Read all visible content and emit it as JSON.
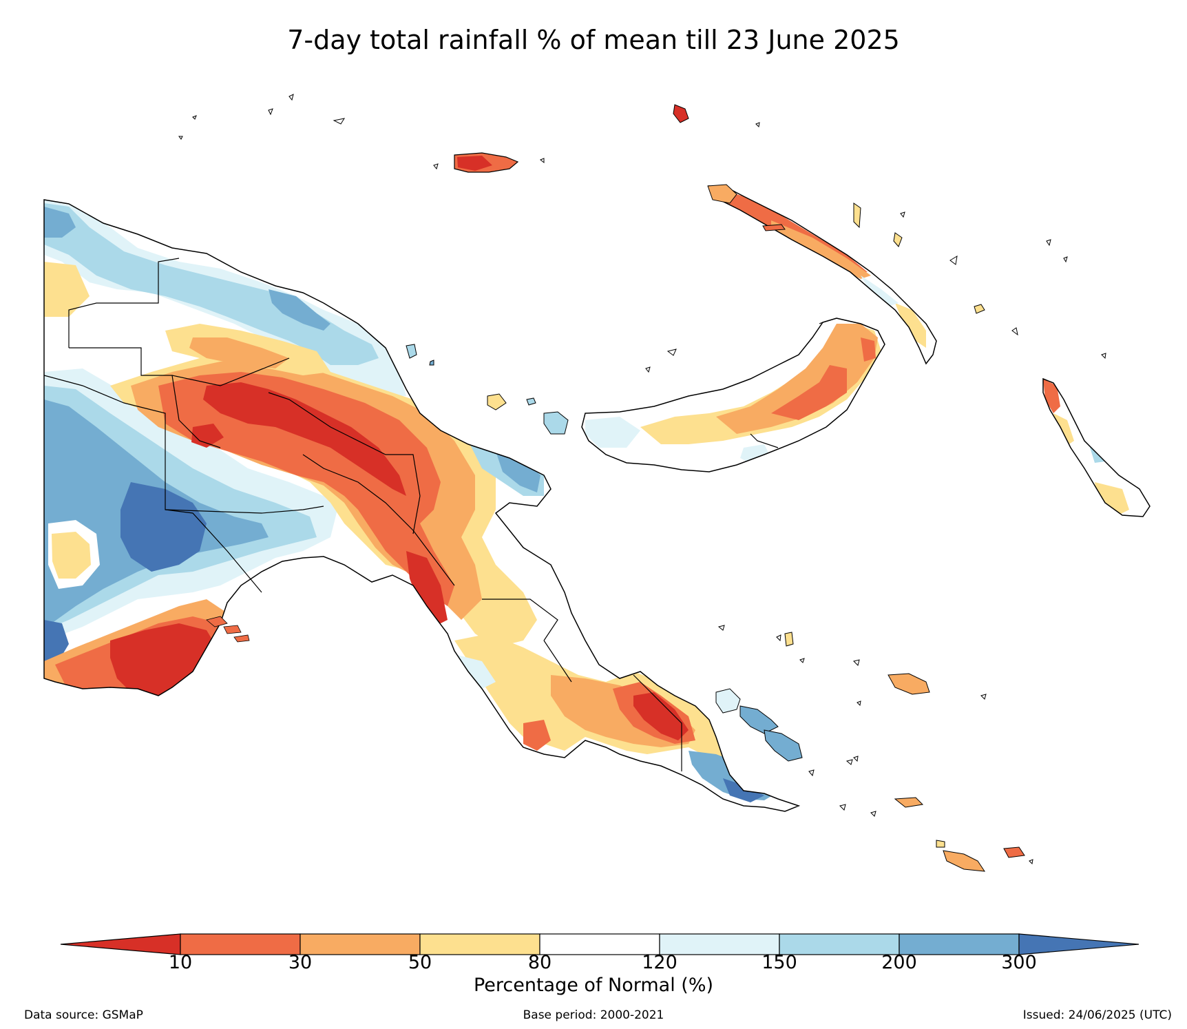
{
  "title": "7-day total rainfall % of mean till 23 June 2025",
  "colorbar": {
    "title": "Percentage of Normal (%)",
    "ticks": [
      "10",
      "30",
      "50",
      "80",
      "120",
      "150",
      "200",
      "300"
    ],
    "colors": {
      "below_10": "#d73027",
      "10_30": "#ef6c45",
      "30_50": "#f8ab62",
      "50_80": "#fde08f",
      "80_120": "#ffffff",
      "120_150": "#e0f3f8",
      "150_200": "#abd9e9",
      "200_300": "#74add1",
      "above_300": "#4575b4"
    }
  },
  "footer": {
    "source": "Data source: GSMaP",
    "base_period": "Base period: 2000-2021",
    "issued": "Issued: 24/06/2025 (UTC)"
  }
}
